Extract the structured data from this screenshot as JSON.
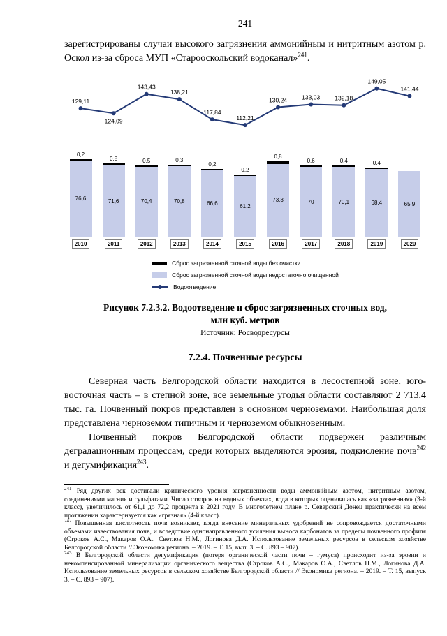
{
  "page": {
    "number": "241"
  },
  "intro": {
    "text": "зарегистрированы случаи высокого загрязнения аммонийным и нитритным азотом р. Оскол из-за сброса МУП «Старооскольский водоканал»",
    "sup": "241",
    "tail": "."
  },
  "chart_data": {
    "type": "bar+line",
    "categories": [
      "2010",
      "2011",
      "2012",
      "2013",
      "2014",
      "2015",
      "2016",
      "2017",
      "2018",
      "2019",
      "2020"
    ],
    "series": [
      {
        "name": "Сброс загрязненной сточной воды без очистки",
        "type": "bar",
        "values": [
          0.2,
          0.8,
          0.5,
          0.3,
          0.2,
          0.2,
          0.8,
          0.6,
          0.4,
          0.4,
          null
        ],
        "labels": [
          "0,2",
          "0,8",
          "0,5",
          "0,3",
          "0,2",
          "0,2",
          "0,8",
          "0,6",
          "0,4",
          "0,4",
          ""
        ]
      },
      {
        "name": "Сброс загрязненной сточной воды недостаточно очищенной",
        "type": "bar",
        "values": [
          76.6,
          71.6,
          70.4,
          70.8,
          66.6,
          61.2,
          73.3,
          70,
          70.1,
          68.4,
          65.9
        ],
        "labels": [
          "76,6",
          "71,6",
          "70,4",
          "70,8",
          "66,6",
          "61,2",
          "73,3",
          "70",
          "70,1",
          "68,4",
          "65,9"
        ]
      },
      {
        "name": "Водоотведение",
        "type": "line",
        "values": [
          129.11,
          124.09,
          143.43,
          138.21,
          117.84,
          112.21,
          130.24,
          133.03,
          132.18,
          149.05,
          141.44
        ],
        "labels": [
          "129,11",
          "124,09",
          "143,43",
          "138,21",
          "117,84",
          "112,21",
          "130,24",
          "133,03",
          "132,18",
          "149,05",
          "141,44"
        ]
      }
    ],
    "ylim": [
      0,
      165
    ],
    "grid": false,
    "legend_position": "bottom",
    "colors": {
      "bar_no_treatment": "#000000",
      "bar_insufficient": "#c6cde9",
      "line": "#243a76"
    }
  },
  "figure": {
    "caption_line1": "Рисунок 7.2.3.2. Водоотведение и сброс загрязненных сточных вод,",
    "caption_line2": "млн куб. метров",
    "source": "Источник: Росводресурсы"
  },
  "section": {
    "heading": "7.2.4. Почвенные ресурсы"
  },
  "paragraphs": {
    "p1": "Северная часть Белгородской области находится в лесостепной зоне, юго-восточная часть – в степной зоне, все земельные угодья области составляют 2 713,4 тыс. га. Почвенный покров представлен в основном черноземами. Наибольшая доля представлена черноземом типичным и черноземом обыкновенным.",
    "p2_before": "Почвенный покров Белгородской области подвержен различным деградационным процессам, среди которых выделяются эрозия, подкисление почв",
    "p2_sup1": "242",
    "p2_mid": " и дегумификация",
    "p2_sup2": "243",
    "p2_tail": "."
  },
  "footnotes": [
    {
      "num": "241",
      "text": " Ряд других рек достигали критического уровня загрязненности воды аммонийным азотом, нитритным азотом, соединениями магния и сульфатами. Число створов на водных объектах, вода в которых оценивалась как «загрязненная» (3-й класс), увеличилось от 61,1 до 72,2 процента в 2021 году. В многолетнем плане р. Северский Донец практически на всем протяжении характеризуется как «грязная» (4-й класс)."
    },
    {
      "num": "242",
      "text": " Повышенная кислотность почв возникает, когда внесение минеральных удобрений не сопровождается достаточными объемами известкования почв, и вследствие однонаправленного усиления выноса карбонатов за пределы почвенного профиля (Строков А.С., Макаров О.А., Светлов Н.М., Логинова Д.А. Использование земельных ресурсов в сельском хозяйстве Белгородской области // Экономика региона. – 2019. – Т. 15, вып. 3. – С. 893 – 907)."
    },
    {
      "num": "243",
      "text": " В Белгородской области дегумификация (потеря органической части почв – гумуса) происходит из-за эрозии и некомпенсированной минерализации органического вещества (Строков А.С., Макаров О.А., Светлов Н.М., Логинова Д.А. Использование земельных ресурсов в сельском хозяйстве Белгородской области // Экономика региона. – 2019. – Т. 15, выпуск 3. – С. 893 – 907)."
    }
  ]
}
